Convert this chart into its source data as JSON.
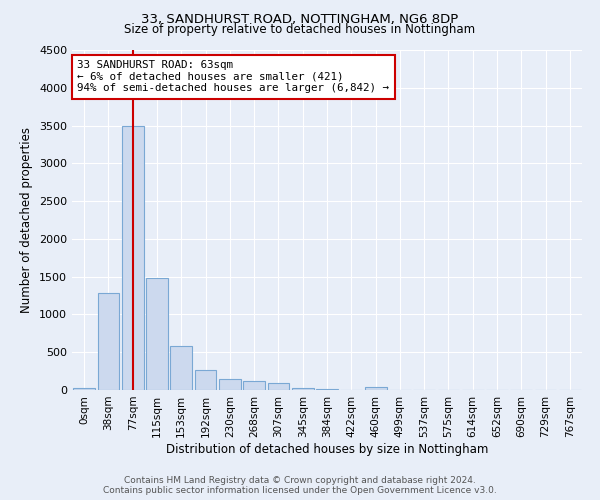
{
  "title1": "33, SANDHURST ROAD, NOTTINGHAM, NG6 8DP",
  "title2": "Size of property relative to detached houses in Nottingham",
  "xlabel": "Distribution of detached houses by size in Nottingham",
  "ylabel": "Number of detached properties",
  "annotation_line1": "33 SANDHURST ROAD: 63sqm",
  "annotation_line2": "← 6% of detached houses are smaller (421)",
  "annotation_line3": "94% of semi-detached houses are larger (6,842) →",
  "categories": [
    "0sqm",
    "38sqm",
    "77sqm",
    "115sqm",
    "153sqm",
    "192sqm",
    "230sqm",
    "268sqm",
    "307sqm",
    "345sqm",
    "384sqm",
    "422sqm",
    "460sqm",
    "499sqm",
    "537sqm",
    "575sqm",
    "614sqm",
    "652sqm",
    "690sqm",
    "729sqm",
    "767sqm"
  ],
  "values": [
    30,
    1280,
    3500,
    1480,
    580,
    260,
    150,
    120,
    90,
    30,
    10,
    5,
    40,
    0,
    0,
    0,
    0,
    0,
    0,
    0,
    0
  ],
  "bar_color": "#ccd9ee",
  "bar_edge_color": "#7aa8d4",
  "ylim": [
    0,
    4500
  ],
  "yticks": [
    0,
    500,
    1000,
    1500,
    2000,
    2500,
    3000,
    3500,
    4000,
    4500
  ],
  "vline_color": "#cc0000",
  "vline_x_index": 2,
  "bg_color": "#e8eef8",
  "grid_color": "#ffffff",
  "footer1": "Contains HM Land Registry data © Crown copyright and database right 2024.",
  "footer2": "Contains public sector information licensed under the Open Government Licence v3.0."
}
